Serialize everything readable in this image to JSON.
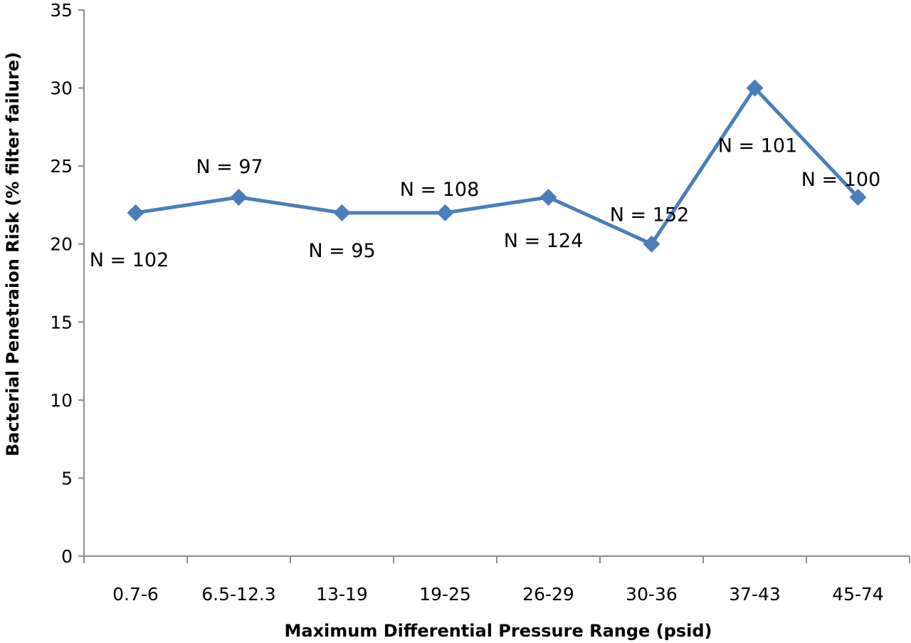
{
  "chart_data": {
    "type": "line",
    "title": "",
    "xlabel": "Maximum Differential Pressure Range (psid)",
    "ylabel": "Bacterial Penetraion Risk (% filter failure)",
    "categories": [
      "0.7-6",
      "6.5-12.3",
      "13-19",
      "19-25",
      "26-29",
      "30-36",
      "37-43",
      "45-74"
    ],
    "series": [
      {
        "values": [
          22,
          23,
          22,
          22,
          23,
          20,
          30,
          23
        ]
      }
    ],
    "point_labels": [
      "N = 102",
      "N = 97",
      "N = 95",
      "N = 108",
      "N = 124",
      "N = 152",
      "N = 101",
      "N = 100"
    ],
    "ylim": [
      0,
      35
    ],
    "yticks": [
      "0",
      "5",
      "10",
      "15",
      "20",
      "25",
      "30",
      "35"
    ],
    "grid": false,
    "legend": "none",
    "line_color": "#4a7ebb",
    "marker": "diamond"
  }
}
